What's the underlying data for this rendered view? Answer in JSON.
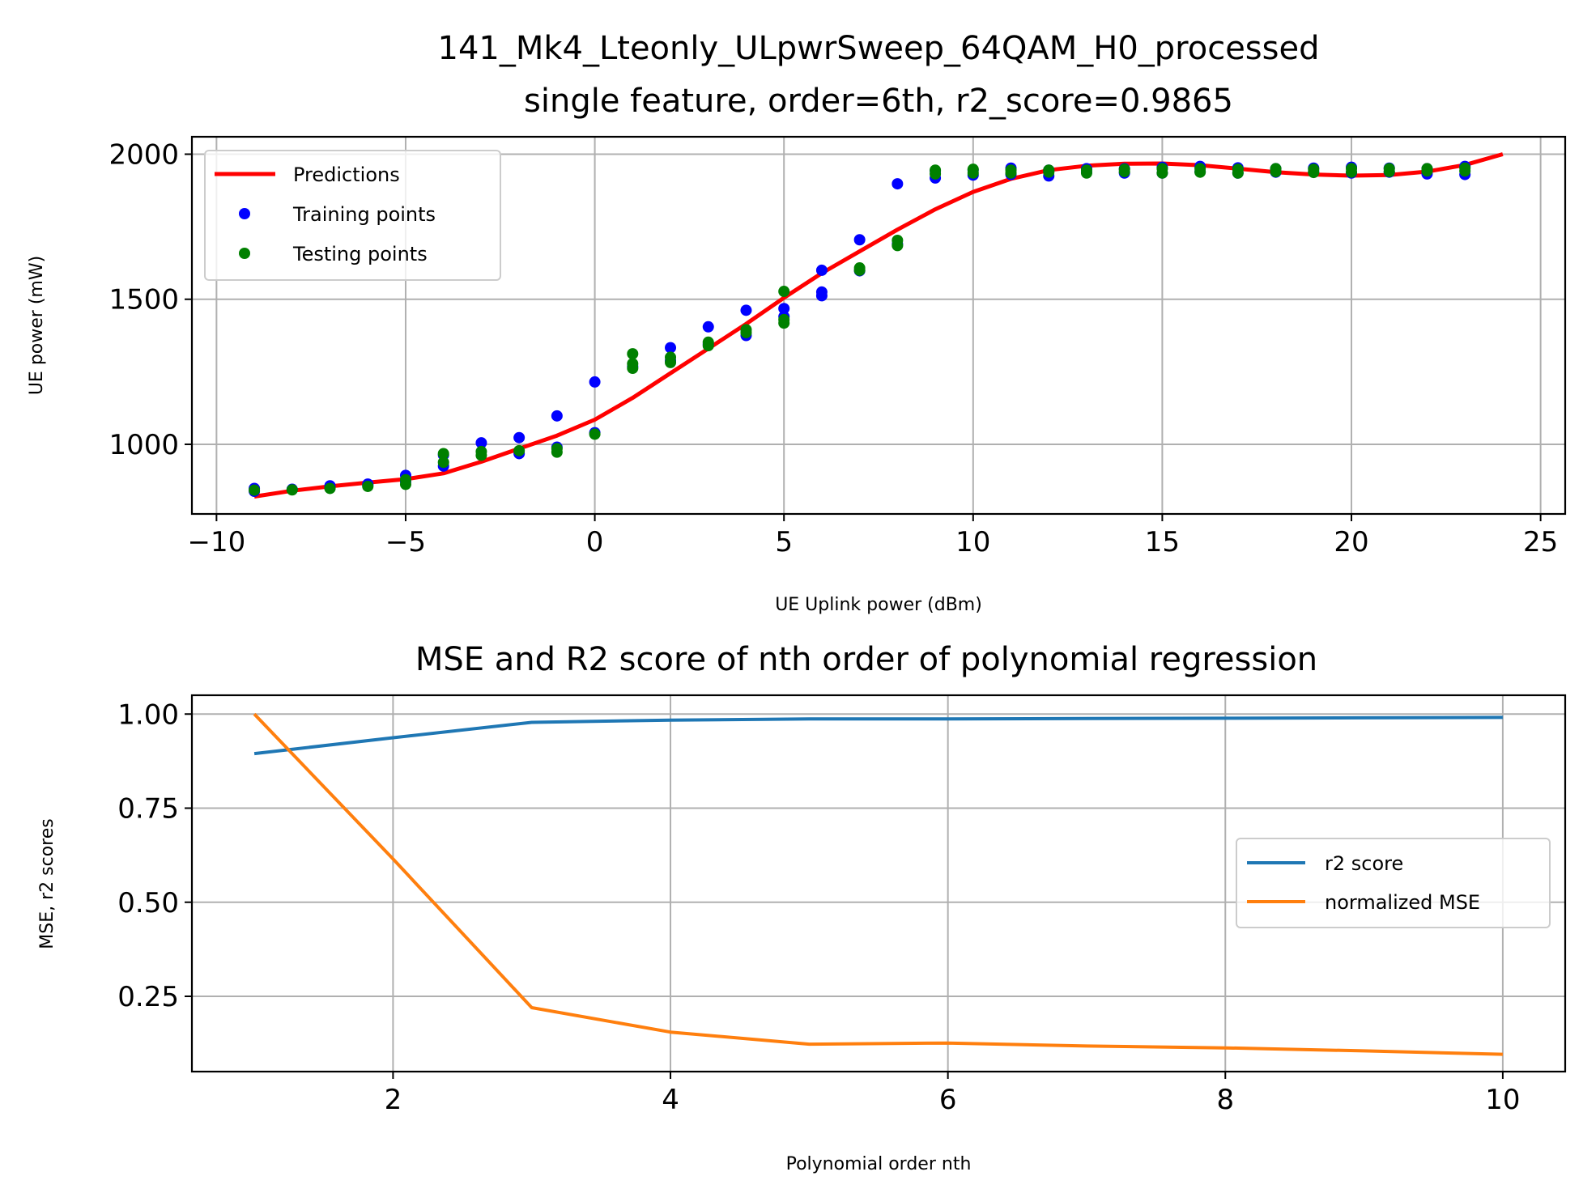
{
  "chart_data": [
    {
      "type": "scatter",
      "title": "141_Mk4_Lteonly_ULpwrSweep_64QAM_H0_processed",
      "subtitle": "single feature, order=6th, r2_score=0.9865",
      "xlabel": "UE Uplink power (dBm)",
      "ylabel": "UE power (mW)",
      "xlim": [
        -10.65,
        25.65
      ],
      "ylim": [
        760,
        2060
      ],
      "xticks": [
        -10,
        -5,
        0,
        5,
        10,
        15,
        20,
        25
      ],
      "yticks": [
        1000,
        1500,
        2000
      ],
      "xtick_labels": [
        "−10",
        "−5",
        "0",
        "5",
        "10",
        "15",
        "20",
        "25"
      ],
      "ytick_labels": [
        "1000",
        "1500",
        "2000"
      ],
      "grid": true,
      "legend_position": "upper-left",
      "colors": {
        "prediction": "#ff0000",
        "training": "#0000ff",
        "testing": "#008000"
      },
      "series": [
        {
          "name": "Predictions",
          "kind": "line",
          "points": [
            [
              -9,
              820
            ],
            [
              -8,
              840
            ],
            [
              -7,
              855
            ],
            [
              -6,
              868
            ],
            [
              -5,
              880
            ],
            [
              -4,
              900
            ],
            [
              -3,
              940
            ],
            [
              -2,
              985
            ],
            [
              -1,
              1030
            ],
            [
              0,
              1085
            ],
            [
              1,
              1160
            ],
            [
              2,
              1245
            ],
            [
              3,
              1330
            ],
            [
              4,
              1415
            ],
            [
              5,
              1505
            ],
            [
              6,
              1590
            ],
            [
              7,
              1665
            ],
            [
              8,
              1740
            ],
            [
              9,
              1810
            ],
            [
              10,
              1870
            ],
            [
              11,
              1915
            ],
            [
              12,
              1945
            ],
            [
              13,
              1960
            ],
            [
              14,
              1967
            ],
            [
              15,
              1968
            ],
            [
              16,
              1962
            ],
            [
              17,
              1950
            ],
            [
              18,
              1938
            ],
            [
              19,
              1930
            ],
            [
              20,
              1926
            ],
            [
              21,
              1928
            ],
            [
              22,
              1940
            ],
            [
              23,
              1963
            ],
            [
              24,
              2000
            ]
          ]
        },
        {
          "name": "Training points",
          "kind": "scatter",
          "points": [
            [
              -9,
              838
            ],
            [
              -9,
              848
            ],
            [
              -8,
              845
            ],
            [
              -7,
              850
            ],
            [
              -7,
              857
            ],
            [
              -6,
              858
            ],
            [
              -6,
              863
            ],
            [
              -5,
              872
            ],
            [
              -5,
              893
            ],
            [
              -4,
              925
            ],
            [
              -4,
              963
            ],
            [
              -3,
              1005
            ],
            [
              -2,
              968
            ],
            [
              -2,
              1023
            ],
            [
              -1,
              990
            ],
            [
              -1,
              1098
            ],
            [
              0,
              1040
            ],
            [
              0,
              1215
            ],
            [
              1,
              1268
            ],
            [
              2,
              1288
            ],
            [
              2,
              1333
            ],
            [
              3,
              1345
            ],
            [
              3,
              1405
            ],
            [
              4,
              1375
            ],
            [
              4,
              1462
            ],
            [
              5,
              1440
            ],
            [
              5,
              1468
            ],
            [
              6,
              1512
            ],
            [
              6,
              1525
            ],
            [
              6,
              1600
            ],
            [
              7,
              1598
            ],
            [
              7,
              1705
            ],
            [
              8,
              1690
            ],
            [
              8,
              1898
            ],
            [
              9,
              1918
            ],
            [
              9,
              1942
            ],
            [
              10,
              1928
            ],
            [
              10,
              1945
            ],
            [
              11,
              1930
            ],
            [
              11,
              1952
            ],
            [
              12,
              1925
            ],
            [
              12,
              1945
            ],
            [
              13,
              1938
            ],
            [
              13,
              1950
            ],
            [
              14,
              1935
            ],
            [
              14,
              1950
            ],
            [
              15,
              1935
            ],
            [
              15,
              1955
            ],
            [
              16,
              1940
            ],
            [
              16,
              1958
            ],
            [
              17,
              1935
            ],
            [
              17,
              1953
            ],
            [
              18,
              1938
            ],
            [
              18,
              1950
            ],
            [
              19,
              1940
            ],
            [
              19,
              1952
            ],
            [
              20,
              1935
            ],
            [
              20,
              1955
            ],
            [
              21,
              1938
            ],
            [
              21,
              1952
            ],
            [
              22,
              1932
            ],
            [
              22,
              1950
            ],
            [
              23,
              1930
            ],
            [
              23,
              1958
            ]
          ]
        },
        {
          "name": "Testing points",
          "kind": "scatter",
          "points": [
            [
              -9,
              842
            ],
            [
              -8,
              843
            ],
            [
              -7,
              848
            ],
            [
              -6,
              855
            ],
            [
              -5,
              862
            ],
            [
              -5,
              878
            ],
            [
              -4,
              938
            ],
            [
              -4,
              968
            ],
            [
              -3,
              962
            ],
            [
              -3,
              975
            ],
            [
              -2,
              978
            ],
            [
              -1,
              973
            ],
            [
              -1,
              985
            ],
            [
              0,
              1035
            ],
            [
              1,
              1262
            ],
            [
              1,
              1278
            ],
            [
              1,
              1312
            ],
            [
              2,
              1282
            ],
            [
              2,
              1300
            ],
            [
              3,
              1340
            ],
            [
              3,
              1352
            ],
            [
              4,
              1385
            ],
            [
              4,
              1395
            ],
            [
              5,
              1418
            ],
            [
              5,
              1430
            ],
            [
              5,
              1527
            ],
            [
              7,
              1600
            ],
            [
              7,
              1608
            ],
            [
              8,
              1685
            ],
            [
              8,
              1703
            ],
            [
              9,
              1932
            ],
            [
              9,
              1945
            ],
            [
              10,
              1935
            ],
            [
              10,
              1948
            ],
            [
              11,
              1935
            ],
            [
              11,
              1945
            ],
            [
              12,
              1938
            ],
            [
              12,
              1945
            ],
            [
              13,
              1935
            ],
            [
              13,
              1945
            ],
            [
              14,
              1940
            ],
            [
              14,
              1948
            ],
            [
              15,
              1935
            ],
            [
              15,
              1950
            ],
            [
              16,
              1938
            ],
            [
              16,
              1950
            ],
            [
              17,
              1935
            ],
            [
              17,
              1948
            ],
            [
              18,
              1940
            ],
            [
              18,
              1950
            ],
            [
              19,
              1937
            ],
            [
              19,
              1948
            ],
            [
              20,
              1938
            ],
            [
              20,
              1950
            ],
            [
              21,
              1940
            ],
            [
              21,
              1950
            ],
            [
              22,
              1942
            ],
            [
              22,
              1950
            ],
            [
              23,
              1942
            ],
            [
              23,
              1952
            ]
          ]
        }
      ]
    },
    {
      "type": "line",
      "title": "MSE and R2 score of nth order of polynomial regression",
      "xlabel": "Polynomial order nth",
      "ylabel": "MSE, r2 scores",
      "xlim": [
        0.55,
        10.45
      ],
      "ylim": [
        0.05,
        1.05
      ],
      "xticks": [
        2,
        4,
        6,
        8,
        10
      ],
      "yticks": [
        0.25,
        0.5,
        0.75,
        1.0
      ],
      "xtick_labels": [
        "2",
        "4",
        "6",
        "8",
        "10"
      ],
      "ytick_labels": [
        "0.25",
        "0.50",
        "0.75",
        "1.00"
      ],
      "grid": true,
      "legend_position": "center-right",
      "colors": {
        "r2": "#1f77b4",
        "mse": "#ff7f0e"
      },
      "x": [
        1,
        2,
        3,
        4,
        5,
        6,
        7,
        8,
        9,
        10
      ],
      "series": [
        {
          "name": "r2 score",
          "values": [
            0.895,
            0.937,
            0.978,
            0.984,
            0.987,
            0.987,
            0.988,
            0.989,
            0.99,
            0.991
          ]
        },
        {
          "name": "normalized MSE",
          "values": [
            1.0,
            0.615,
            0.22,
            0.155,
            0.123,
            0.126,
            0.118,
            0.113,
            0.105,
            0.096
          ]
        }
      ]
    }
  ]
}
